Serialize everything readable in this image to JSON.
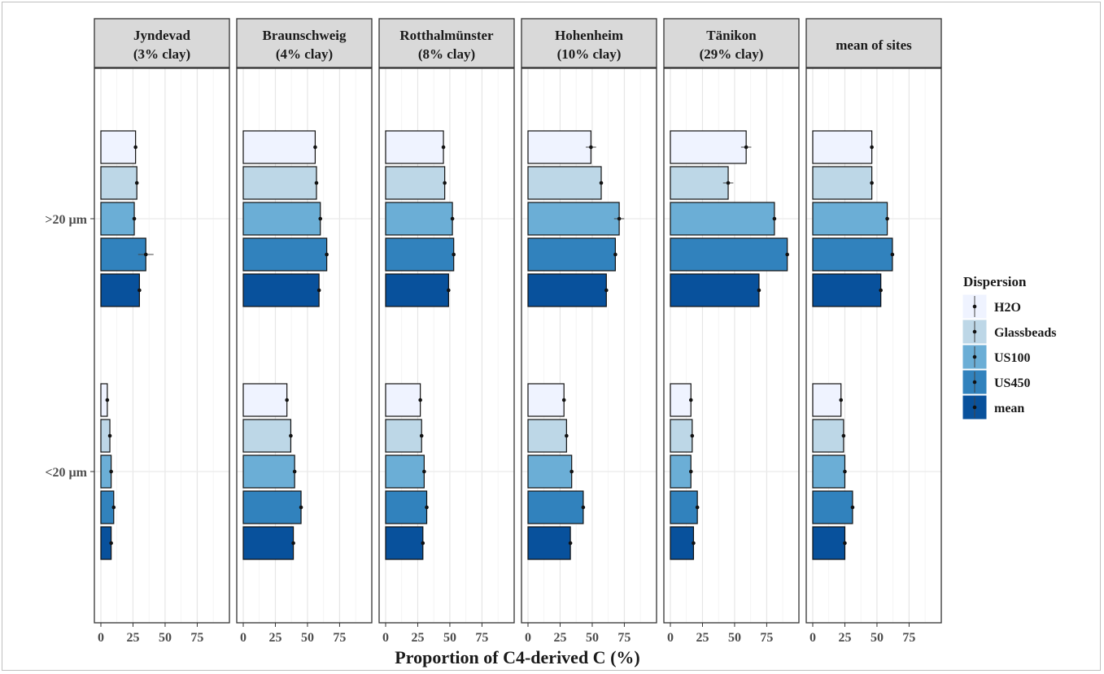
{
  "chart_data": {
    "type": "bar",
    "orientation": "horizontal",
    "xlabel": "Proportion of C4-derived C (%)",
    "xlim": [
      0,
      95
    ],
    "xticks": [
      0,
      25,
      50,
      75
    ],
    "grid": true,
    "categories": [
      ">20 µm",
      "<20 µm"
    ],
    "legend": {
      "title": "Dispersion",
      "position": "right",
      "entries": [
        "H2O",
        "Glassbeads",
        "US100",
        "US450",
        "mean"
      ]
    },
    "colors": {
      "H2O": "#eff3ff",
      "Glassbeads": "#bdd7e7",
      "US100": "#6baed6",
      "US450": "#3182bd",
      "mean": "#08519c"
    },
    "panels": [
      {
        "name": "Jyndevad",
        "subtitle": "(3% clay)",
        "values": {
          ">20 µm": {
            "H2O": 27,
            "Glassbeads": 28,
            "US100": 26,
            "US450": 35,
            "mean": 30
          },
          "<20 µm": {
            "H2O": 5,
            "Glassbeads": 7,
            "US100": 8,
            "US450": 10,
            "mean": 8
          }
        },
        "errors": {
          ">20 µm": {
            "H2O": 1,
            "Glassbeads": 1,
            "US100": 1,
            "US450": 6,
            "mean": 1
          },
          "<20 µm": {
            "H2O": 0.5,
            "Glassbeads": 0.5,
            "US100": 0.5,
            "US450": 0.5,
            "mean": 0.5
          }
        }
      },
      {
        "name": "Braunschweig",
        "subtitle": "(4% clay)",
        "values": {
          ">20 µm": {
            "H2O": 56,
            "Glassbeads": 57,
            "US100": 60,
            "US450": 65,
            "mean": 59
          },
          "<20 µm": {
            "H2O": 34,
            "Glassbeads": 37,
            "US100": 40,
            "US450": 45,
            "mean": 39
          }
        },
        "errors": {
          ">20 µm": {
            "H2O": 1,
            "Glassbeads": 1,
            "US100": 1,
            "US450": 1,
            "mean": 1
          },
          "<20 µm": {
            "H2O": 1,
            "Glassbeads": 1,
            "US100": 1,
            "US450": 1,
            "mean": 1
          }
        }
      },
      {
        "name": "Rotthalmünster",
        "subtitle": "(8% clay)",
        "values": {
          ">20 µm": {
            "H2O": 45,
            "Glassbeads": 46,
            "US100": 52,
            "US450": 53,
            "mean": 49
          },
          "<20 µm": {
            "H2O": 27,
            "Glassbeads": 28,
            "US100": 30,
            "US450": 32,
            "mean": 29
          }
        },
        "errors": {
          ">20 µm": {
            "H2O": 1,
            "Glassbeads": 1,
            "US100": 1,
            "US450": 1,
            "mean": 1
          },
          "<20 µm": {
            "H2O": 1,
            "Glassbeads": 1,
            "US100": 1,
            "US450": 1,
            "mean": 1
          }
        }
      },
      {
        "name": "Hohenheim",
        "subtitle": "(10% clay)",
        "values": {
          ">20 µm": {
            "H2O": 49,
            "Glassbeads": 57,
            "US100": 71,
            "US450": 68,
            "mean": 61
          },
          "<20 µm": {
            "H2O": 28,
            "Glassbeads": 30,
            "US100": 34,
            "US450": 43,
            "mean": 33
          }
        },
        "errors": {
          ">20 µm": {
            "H2O": 4,
            "Glassbeads": 1,
            "US100": 4,
            "US450": 1,
            "mean": 1
          },
          "<20 µm": {
            "H2O": 1,
            "Glassbeads": 1,
            "US100": 1,
            "US450": 1,
            "mean": 1
          }
        }
      },
      {
        "name": "Tänikon",
        "subtitle": "(29% clay)",
        "values": {
          ">20 µm": {
            "H2O": 59,
            "Glassbeads": 45,
            "US100": 81,
            "US450": 91,
            "mean": 69
          },
          "<20 µm": {
            "H2O": 16,
            "Glassbeads": 17,
            "US100": 16,
            "US450": 21,
            "mean": 18
          }
        },
        "errors": {
          ">20 µm": {
            "H2O": 4,
            "Glassbeads": 4,
            "US100": 1,
            "US450": 1,
            "mean": 1
          },
          "<20 µm": {
            "H2O": 1,
            "Glassbeads": 1,
            "US100": 1,
            "US450": 1,
            "mean": 1
          }
        }
      },
      {
        "name": "mean of sites",
        "subtitle": "",
        "values": {
          ">20 µm": {
            "H2O": 46,
            "Glassbeads": 46,
            "US100": 58,
            "US450": 62,
            "mean": 53
          },
          "<20 µm": {
            "H2O": 22,
            "Glassbeads": 24,
            "US100": 25,
            "US450": 31,
            "mean": 25
          }
        },
        "errors": {
          ">20 µm": {
            "H2O": 1,
            "Glassbeads": 1,
            "US100": 1,
            "US450": 1,
            "mean": 1
          },
          "<20 µm": {
            "H2O": 1,
            "Glassbeads": 1,
            "US100": 1,
            "US450": 1,
            "mean": 1
          }
        }
      }
    ]
  }
}
